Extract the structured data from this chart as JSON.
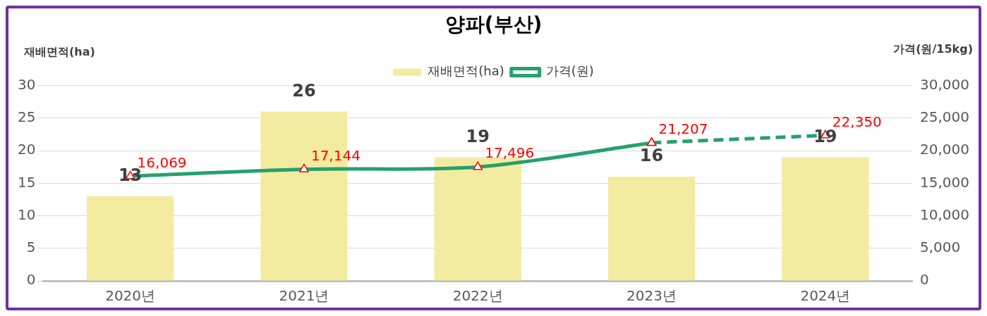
{
  "chart_data": {
    "type": "bar",
    "title": "양파(부산)",
    "ylabel": "재배면적(ha)",
    "y2label": "가격(원/15kg)",
    "categories": [
      "2020년",
      "2021년",
      "2022년",
      "2023년",
      "2024년"
    ],
    "series": [
      {
        "name": "재배면적(ha)",
        "color": "#f3eba0",
        "values": [
          13,
          26,
          19,
          16,
          19
        ],
        "value_labels": [
          "13",
          "26",
          "19",
          "16",
          "19"
        ]
      },
      {
        "name": "가격(원)",
        "type": "line",
        "axis": "y2",
        "color": "#26a06e",
        "marker": "triangle",
        "line_style": "solid",
        "values": [
          16069,
          17144,
          17496,
          21207,
          null
        ],
        "value_labels": [
          "16,069",
          "17,144",
          "17,496",
          "21,207",
          null
        ]
      },
      {
        "type": "line",
        "axis": "y2",
        "color": "#26a06e",
        "marker": "triangle",
        "line_style": "dashed",
        "values": [
          null,
          null,
          null,
          21207,
          22350
        ],
        "value_labels": [
          null,
          null,
          null,
          null,
          "22,350"
        ]
      }
    ],
    "ylim": [
      0,
      30
    ],
    "yticks": [
      0,
      5,
      10,
      15,
      20,
      25,
      30
    ],
    "y2lim": [
      0,
      30000
    ],
    "y2ticks": [
      {
        "value": 0,
        "label": "0"
      },
      {
        "value": 5000,
        "label": "5,000"
      },
      {
        "value": 10000,
        "label": "10,000"
      },
      {
        "value": 15000,
        "label": "15,000"
      },
      {
        "value": 20000,
        "label": "20,000"
      },
      {
        "value": 25000,
        "label": "25,000"
      },
      {
        "value": 30000,
        "label": "30,000"
      }
    ],
    "grid": "y",
    "legend": "top"
  }
}
